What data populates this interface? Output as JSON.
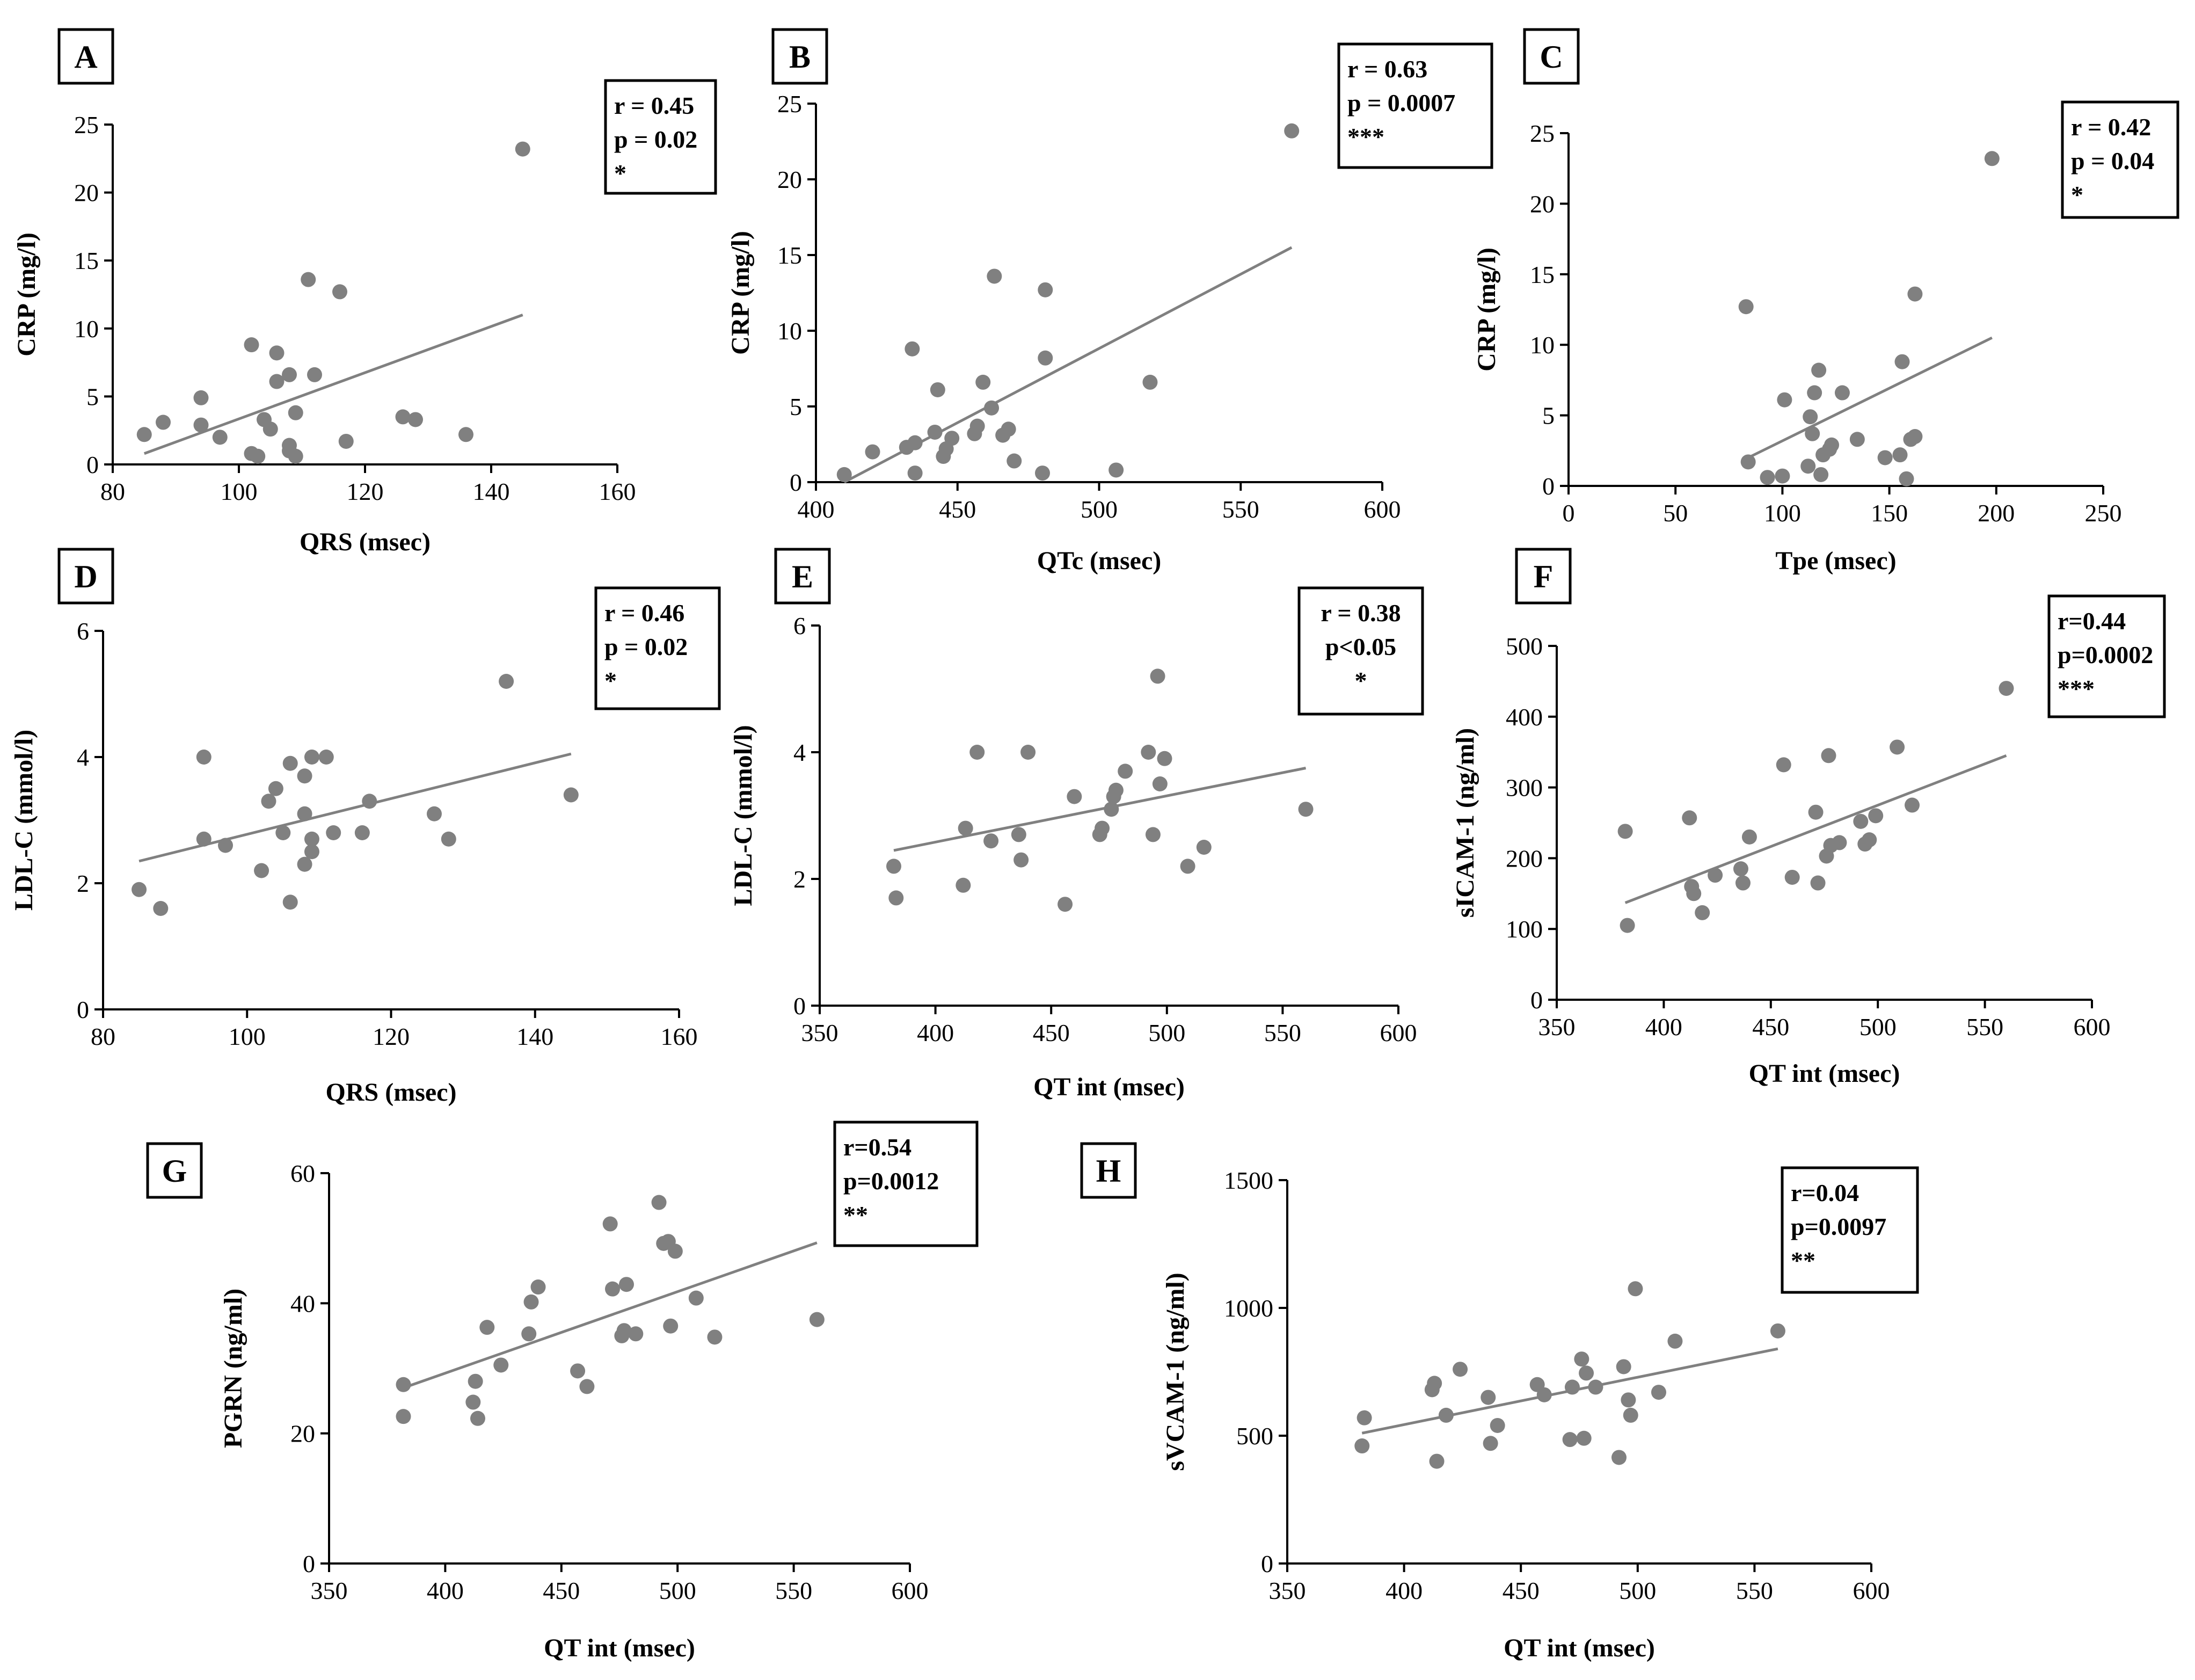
{
  "chart_data": [
    {
      "type": "scatter",
      "letter": "A",
      "xlabel": "QRS (msec)",
      "ylabel": "CRP (mg/l)",
      "xlim": [
        80,
        160
      ],
      "ylim": [
        0,
        25
      ],
      "xticks": [
        80,
        100,
        120,
        140,
        160
      ],
      "yticks": [
        0,
        5,
        10,
        15,
        20,
        25
      ],
      "stats": [
        "r = 0.45",
        "p = 0.02",
        "*"
      ],
      "points": [
        [
          85,
          2.2
        ],
        [
          88,
          3.1
        ],
        [
          94,
          4.9
        ],
        [
          94,
          2.9
        ],
        [
          97,
          2
        ],
        [
          102,
          8.8
        ],
        [
          102,
          0.8
        ],
        [
          103,
          0.6
        ],
        [
          104,
          3.3
        ],
        [
          105,
          2.6
        ],
        [
          106,
          8.2
        ],
        [
          106,
          6.1
        ],
        [
          108,
          6.6
        ],
        [
          108,
          1.4
        ],
        [
          108,
          1
        ],
        [
          109,
          3.8
        ],
        [
          109,
          0.6
        ],
        [
          111,
          13.6
        ],
        [
          112,
          6.6
        ],
        [
          116,
          12.7
        ],
        [
          117,
          1.7
        ],
        [
          126,
          3.5
        ],
        [
          128,
          3.3
        ],
        [
          136,
          2.2
        ],
        [
          145,
          23.2
        ]
      ],
      "fit": [
        [
          85,
          0.8
        ],
        [
          145,
          11
        ]
      ]
    },
    {
      "type": "scatter",
      "letter": "B",
      "xlabel": "QTc (msec)",
      "ylabel": "CRP (mg/l)",
      "xlim": [
        400,
        600
      ],
      "ylim": [
        0,
        25
      ],
      "xticks": [
        400,
        450,
        500,
        550,
        600
      ],
      "yticks": [
        0,
        5,
        10,
        15,
        20,
        25
      ],
      "stats": [
        "r = 0.63",
        "p = 0.0007",
        "***"
      ],
      "points": [
        [
          410,
          0.5
        ],
        [
          420,
          2
        ],
        [
          432,
          2.3
        ],
        [
          434,
          8.8
        ],
        [
          435,
          2.6
        ],
        [
          435,
          0.6
        ],
        [
          442,
          3.3
        ],
        [
          443,
          6.1
        ],
        [
          445,
          1.7
        ],
        [
          446,
          2.2
        ],
        [
          448,
          2.9
        ],
        [
          456,
          3.2
        ],
        [
          457,
          3.7
        ],
        [
          459,
          6.6
        ],
        [
          462,
          4.9
        ],
        [
          463,
          13.6
        ],
        [
          466,
          3.1
        ],
        [
          468,
          3.5
        ],
        [
          470,
          1.4
        ],
        [
          480,
          0.6
        ],
        [
          481,
          12.7
        ],
        [
          481,
          8.2
        ],
        [
          506,
          0.8
        ],
        [
          518,
          6.6
        ],
        [
          568,
          23.2
        ]
      ],
      "fit": [
        [
          410,
          0
        ],
        [
          568,
          15.5
        ]
      ]
    },
    {
      "type": "scatter",
      "letter": "C",
      "xlabel": "Tpe (msec)",
      "ylabel": "CRP (mg/l)",
      "xlim": [
        0,
        250
      ],
      "ylim": [
        0,
        25
      ],
      "xticks": [
        0,
        50,
        100,
        150,
        200,
        250
      ],
      "yticks": [
        0,
        5,
        10,
        15,
        20,
        25
      ],
      "stats": [
        "r = 0.42",
        "p = 0.04",
        "*"
      ],
      "points": [
        [
          83,
          12.7
        ],
        [
          84,
          1.7
        ],
        [
          93,
          0.6
        ],
        [
          100,
          0.7
        ],
        [
          101,
          6.1
        ],
        [
          112,
          1.4
        ],
        [
          113,
          4.9
        ],
        [
          114,
          3.7
        ],
        [
          115,
          6.6
        ],
        [
          117,
          8.2
        ],
        [
          118,
          0.8
        ],
        [
          119,
          2.2
        ],
        [
          122,
          2.6
        ],
        [
          123,
          2.9
        ],
        [
          128,
          6.6
        ],
        [
          135,
          3.3
        ],
        [
          148,
          2
        ],
        [
          155,
          2.2
        ],
        [
          156,
          8.8
        ],
        [
          158,
          0.5
        ],
        [
          160,
          3.3
        ],
        [
          162,
          3.5
        ],
        [
          162,
          13.6
        ],
        [
          198,
          23.2
        ]
      ],
      "fit": [
        [
          84,
          2
        ],
        [
          198,
          10.5
        ]
      ]
    },
    {
      "type": "scatter",
      "letter": "D",
      "xlabel": "QRS (msec)",
      "ylabel": "LDL-C (mmol/l)",
      "xlim": [
        80,
        160
      ],
      "ylim": [
        0,
        6
      ],
      "xticks": [
        80,
        100,
        120,
        140,
        160
      ],
      "yticks": [
        0,
        2,
        4,
        6
      ],
      "stats": [
        "r = 0.46",
        "p = 0.02",
        "*"
      ],
      "points": [
        [
          85,
          1.9
        ],
        [
          88,
          1.6
        ],
        [
          94,
          4
        ],
        [
          94,
          2.7
        ],
        [
          97,
          2.6
        ],
        [
          102,
          2.2
        ],
        [
          103,
          3.3
        ],
        [
          104,
          3.5
        ],
        [
          105,
          2.8
        ],
        [
          106,
          3.9
        ],
        [
          106,
          1.7
        ],
        [
          108,
          3.7
        ],
        [
          108,
          3.1
        ],
        [
          108,
          2.3
        ],
        [
          109,
          4
        ],
        [
          109,
          2.7
        ],
        [
          109,
          2.5
        ],
        [
          111,
          4
        ],
        [
          112,
          2.8
        ],
        [
          116,
          2.8
        ],
        [
          117,
          3.3
        ],
        [
          126,
          3.1
        ],
        [
          128,
          2.7
        ],
        [
          136,
          5.2
        ],
        [
          145,
          3.4
        ]
      ],
      "fit": [
        [
          85,
          2.35
        ],
        [
          145,
          4.05
        ]
      ]
    },
    {
      "type": "scatter",
      "letter": "E",
      "xlabel": "QT int (msec)",
      "ylabel": "LDL-C (mmol/l)",
      "xlim": [
        350,
        600
      ],
      "ylim": [
        0,
        6
      ],
      "xticks": [
        350,
        400,
        450,
        500,
        550,
        600
      ],
      "yticks": [
        0,
        2,
        4,
        6
      ],
      "stats": [
        "r = 0.38",
        "p<0.05",
        "*"
      ],
      "points": [
        [
          382,
          2.2
        ],
        [
          383,
          1.7
        ],
        [
          412,
          1.9
        ],
        [
          413,
          2.8
        ],
        [
          418,
          4
        ],
        [
          424,
          2.6
        ],
        [
          436,
          2.7
        ],
        [
          437,
          2.3
        ],
        [
          440,
          4
        ],
        [
          456,
          1.6
        ],
        [
          460,
          3.3
        ],
        [
          471,
          2.7
        ],
        [
          472,
          2.8
        ],
        [
          476,
          3.1
        ],
        [
          477,
          3.3
        ],
        [
          478,
          3.4
        ],
        [
          482,
          3.7
        ],
        [
          492,
          4
        ],
        [
          494,
          2.7
        ],
        [
          496,
          5.2
        ],
        [
          497,
          3.5
        ],
        [
          499,
          3.9
        ],
        [
          509,
          2.2
        ],
        [
          516,
          2.5
        ],
        [
          560,
          3.1
        ]
      ],
      "fit": [
        [
          382,
          2.45
        ],
        [
          560,
          3.75
        ]
      ]
    },
    {
      "type": "scatter",
      "letter": "F",
      "xlabel": "QT int (msec)",
      "ylabel": "sICAM-1 (ng/ml)",
      "xlim": [
        350,
        600
      ],
      "ylim": [
        0,
        500
      ],
      "xticks": [
        350,
        400,
        450,
        500,
        550,
        600
      ],
      "yticks": [
        0,
        100,
        200,
        300,
        400,
        500
      ],
      "stats": [
        "r=0.44",
        "p=0.0002",
        "***"
      ],
      "points": [
        [
          382,
          238
        ],
        [
          383,
          105
        ],
        [
          412,
          257
        ],
        [
          413,
          160
        ],
        [
          414,
          150
        ],
        [
          418,
          123
        ],
        [
          424,
          176
        ],
        [
          436,
          185
        ],
        [
          437,
          165
        ],
        [
          440,
          230
        ],
        [
          456,
          332
        ],
        [
          460,
          173
        ],
        [
          471,
          265
        ],
        [
          472,
          165
        ],
        [
          476,
          203
        ],
        [
          477,
          345
        ],
        [
          478,
          218
        ],
        [
          482,
          222
        ],
        [
          492,
          252
        ],
        [
          494,
          220
        ],
        [
          496,
          226
        ],
        [
          499,
          260
        ],
        [
          509,
          357
        ],
        [
          516,
          275
        ],
        [
          560,
          440
        ]
      ],
      "fit": [
        [
          382,
          137
        ],
        [
          560,
          345
        ]
      ]
    },
    {
      "type": "scatter",
      "letter": "G",
      "xlabel": "QT int (msec)",
      "ylabel": "PGRN (ng/ml)",
      "xlim": [
        350,
        600
      ],
      "ylim": [
        0,
        60
      ],
      "xticks": [
        350,
        400,
        450,
        500,
        550,
        600
      ],
      "yticks": [
        0,
        20,
        40,
        60
      ],
      "stats": [
        "r=0.54",
        "p=0.0012",
        "**"
      ],
      "points": [
        [
          382,
          27.5
        ],
        [
          382,
          22.6
        ],
        [
          412,
          24.8
        ],
        [
          413,
          28
        ],
        [
          414,
          22.3
        ],
        [
          418,
          36.3
        ],
        [
          424,
          30.5
        ],
        [
          436,
          35.3
        ],
        [
          437,
          40.2
        ],
        [
          440,
          42.5
        ],
        [
          457,
          29.6
        ],
        [
          461,
          27.2
        ],
        [
          471,
          52.2
        ],
        [
          472,
          42.2
        ],
        [
          476,
          35
        ],
        [
          477,
          35.8
        ],
        [
          478,
          42.9
        ],
        [
          482,
          35.3
        ],
        [
          492,
          55.5
        ],
        [
          494,
          49.2
        ],
        [
          496,
          49.5
        ],
        [
          497,
          36.5
        ],
        [
          499,
          48
        ],
        [
          508,
          40.8
        ],
        [
          516,
          34.8
        ],
        [
          560,
          37.5
        ]
      ],
      "fit": [
        [
          382,
          27
        ],
        [
          560,
          49.3
        ]
      ]
    },
    {
      "type": "scatter",
      "letter": "H",
      "xlabel": "QT int (msec)",
      "ylabel": "sVCAM-1 (ng/ml)",
      "xlim": [
        350,
        600
      ],
      "ylim": [
        0,
        1500
      ],
      "xticks": [
        350,
        400,
        450,
        500,
        550,
        600
      ],
      "yticks": [
        0,
        500,
        1000,
        1500
      ],
      "stats": [
        "r=0.04",
        "p=0.0097",
        "**"
      ],
      "points": [
        [
          382,
          460
        ],
        [
          383,
          570
        ],
        [
          412,
          680
        ],
        [
          413,
          705
        ],
        [
          414,
          400
        ],
        [
          418,
          580
        ],
        [
          424,
          760
        ],
        [
          436,
          650
        ],
        [
          437,
          470
        ],
        [
          440,
          540
        ],
        [
          457,
          700
        ],
        [
          460,
          660
        ],
        [
          471,
          485
        ],
        [
          472,
          690
        ],
        [
          476,
          800
        ],
        [
          477,
          490
        ],
        [
          478,
          745
        ],
        [
          482,
          690
        ],
        [
          492,
          415
        ],
        [
          494,
          770
        ],
        [
          496,
          640
        ],
        [
          497,
          580
        ],
        [
          499,
          1075
        ],
        [
          509,
          670
        ],
        [
          516,
          870
        ],
        [
          560,
          910
        ]
      ],
      "fit": [
        [
          382,
          510
        ],
        [
          560,
          840
        ]
      ]
    }
  ]
}
